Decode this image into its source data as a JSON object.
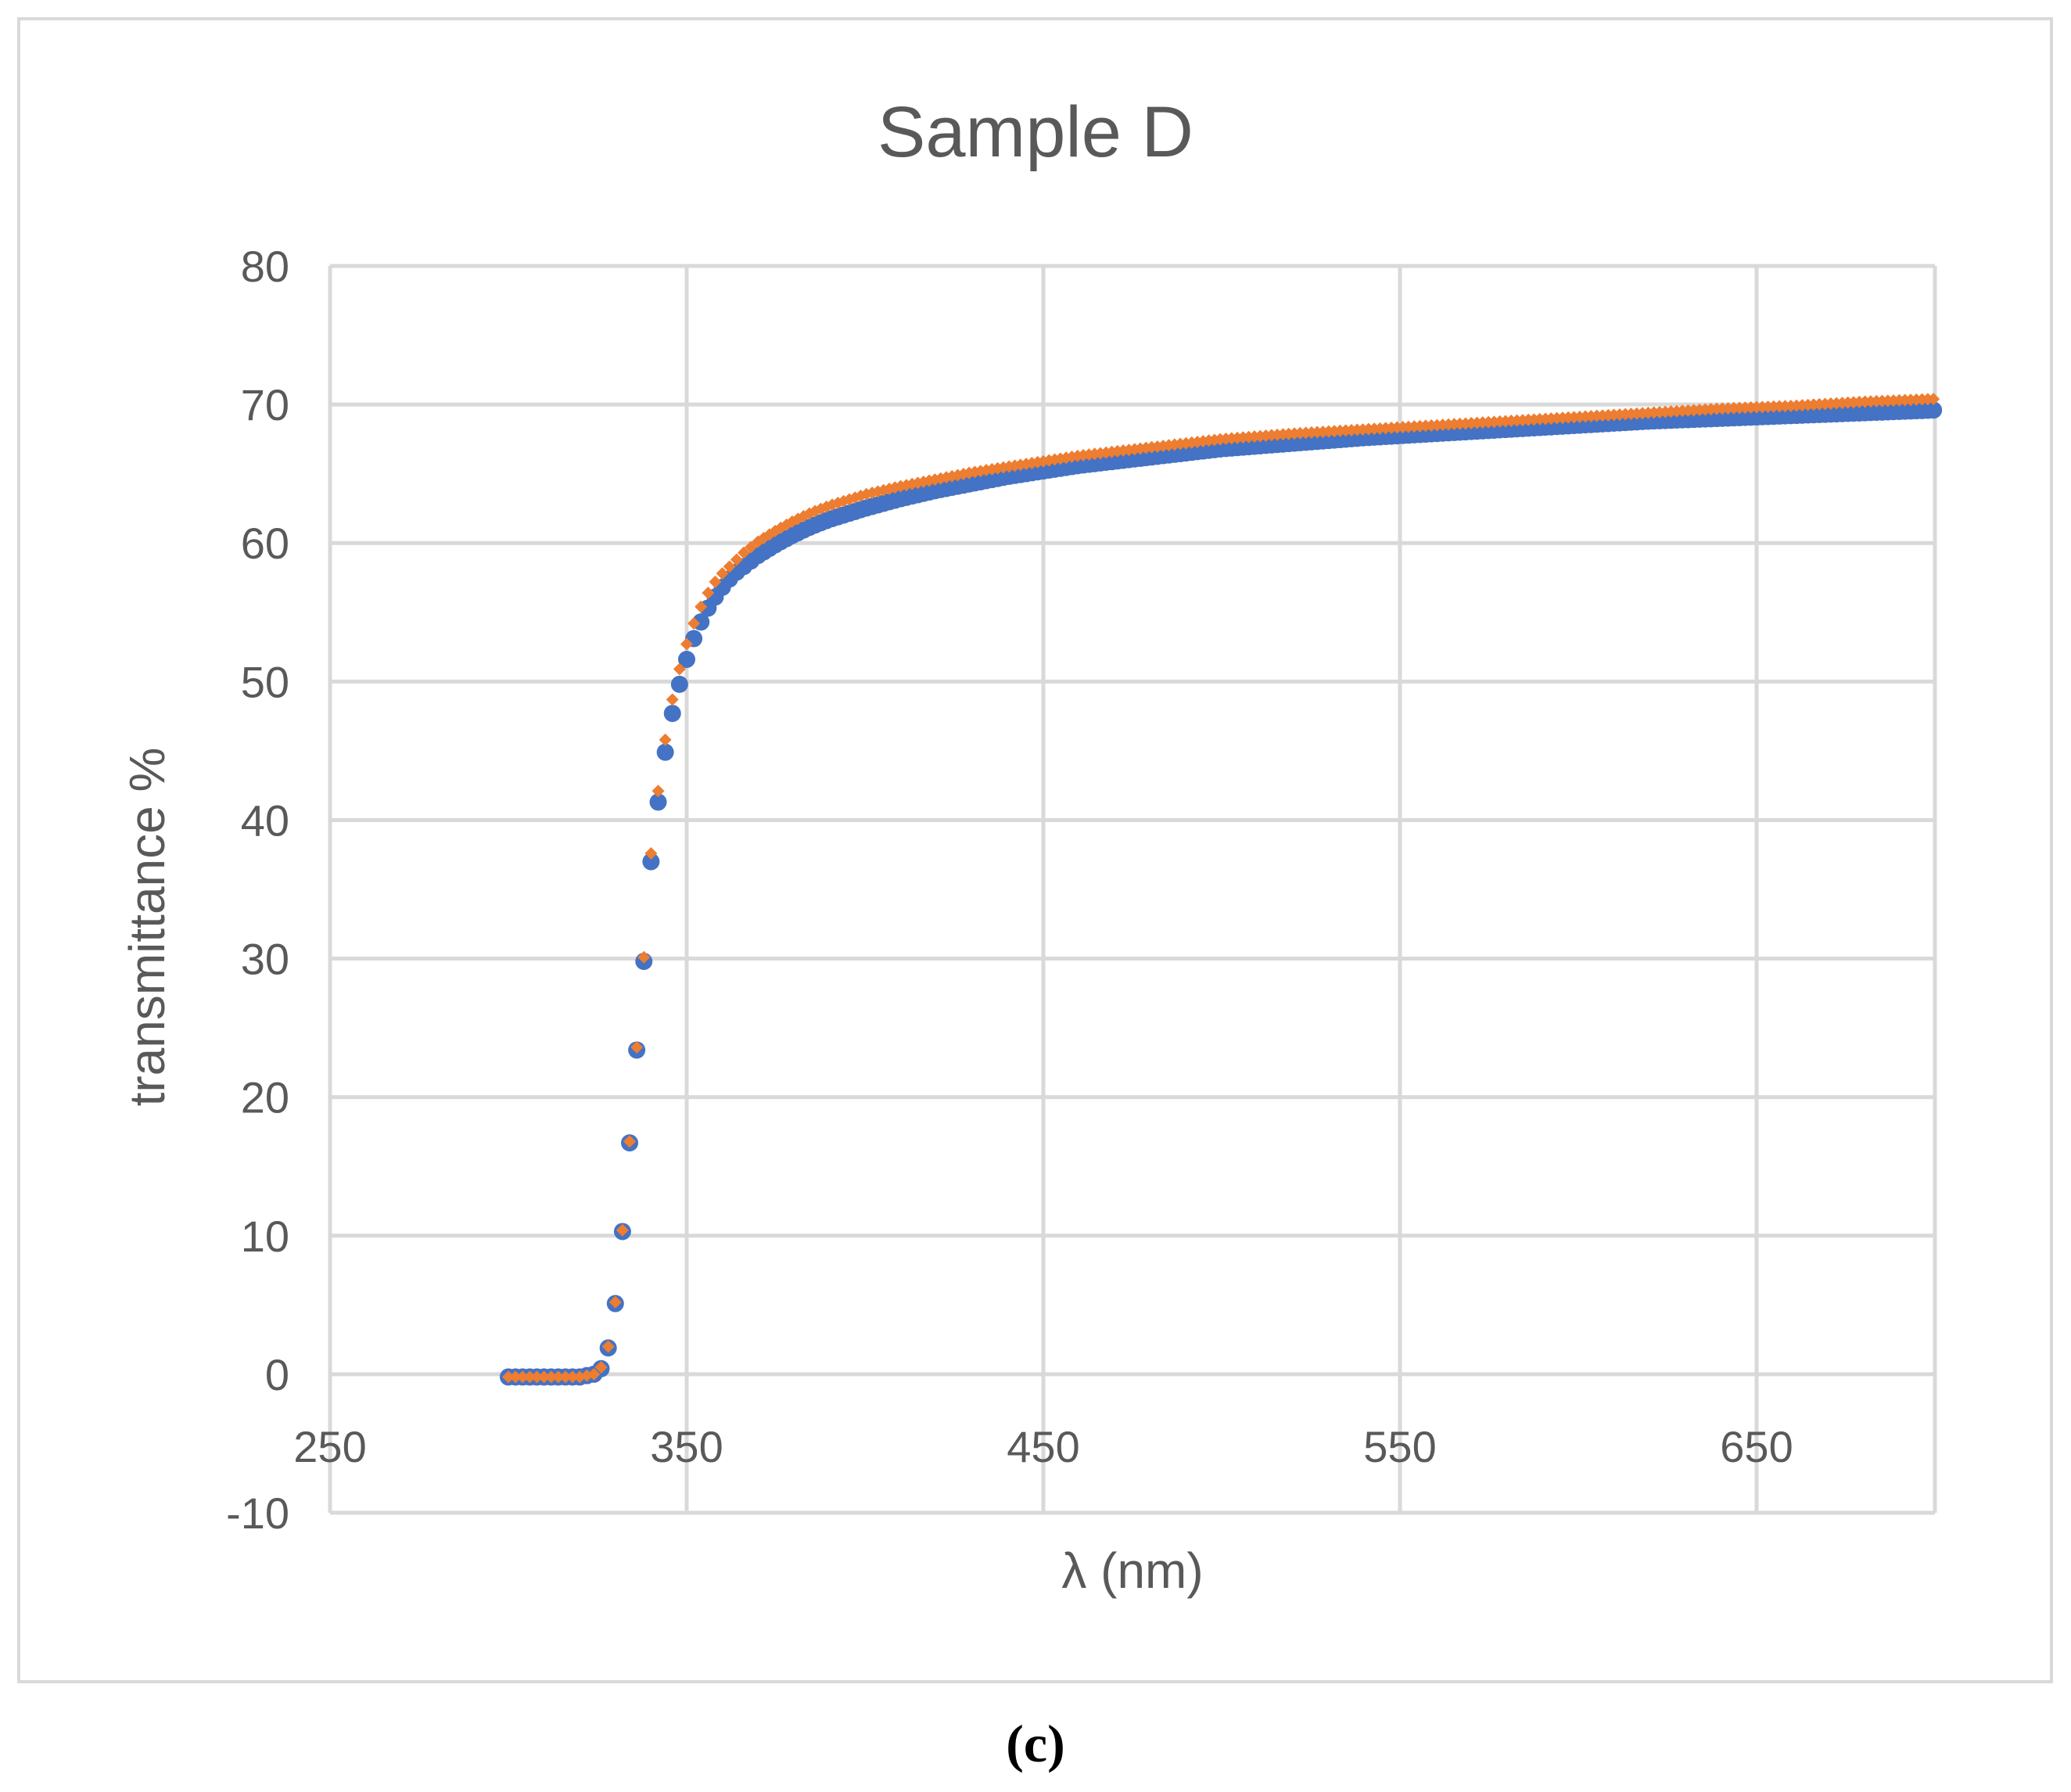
{
  "chart_data": {
    "type": "scatter",
    "title": "Sample D",
    "xlabel": "λ (nm)",
    "ylabel": "transmittance %",
    "xlim": [
      250,
      700
    ],
    "ylim": [
      -10,
      80
    ],
    "x_ticks": [
      250,
      350,
      450,
      550,
      650
    ],
    "y_ticks": [
      -10,
      0,
      10,
      20,
      30,
      40,
      50,
      60,
      70,
      80
    ],
    "grid": true,
    "legend": "none",
    "series": [
      {
        "name": "series-1",
        "color": "#4472c4",
        "marker": "circle",
        "x": [
          300,
          302,
          304,
          306,
          308,
          310,
          312,
          314,
          316,
          318,
          320,
          322,
          324,
          326,
          328,
          330,
          332,
          334,
          336,
          338,
          340,
          342,
          344,
          346,
          348,
          350,
          352,
          354,
          356,
          358,
          360,
          362,
          364,
          366,
          368,
          370,
          375,
          380,
          385,
          390,
          395,
          400,
          410,
          420,
          430,
          440,
          450,
          460,
          470,
          480,
          490,
          500,
          520,
          540,
          560,
          580,
          600,
          620,
          640,
          660,
          680,
          700
        ],
        "y": [
          -0.2,
          -0.2,
          -0.2,
          -0.2,
          -0.2,
          -0.2,
          -0.2,
          -0.2,
          -0.2,
          -0.2,
          -0.2,
          -0.1,
          0.0,
          0.4,
          1.9,
          5.1,
          10.3,
          16.7,
          23.4,
          29.8,
          37.0,
          41.3,
          44.9,
          47.7,
          49.8,
          51.6,
          53.1,
          54.3,
          55.3,
          56.1,
          56.8,
          57.4,
          57.9,
          58.3,
          58.7,
          59.1,
          59.9,
          60.6,
          61.2,
          61.7,
          62.1,
          62.5,
          63.2,
          63.8,
          64.3,
          64.8,
          65.2,
          65.6,
          65.9,
          66.2,
          66.5,
          66.8,
          67.2,
          67.6,
          67.9,
          68.2,
          68.5,
          68.8,
          69.0,
          69.2,
          69.4,
          69.6
        ]
      },
      {
        "name": "series-2",
        "color": "#ed7d31",
        "marker": "diamond",
        "x": [
          300,
          302,
          304,
          306,
          308,
          310,
          312,
          314,
          316,
          318,
          320,
          322,
          324,
          326,
          328,
          330,
          332,
          334,
          336,
          338,
          340,
          342,
          344,
          346,
          348,
          350,
          352,
          354,
          356,
          358,
          360,
          362,
          364,
          366,
          368,
          370,
          375,
          380,
          385,
          390,
          395,
          400,
          410,
          420,
          430,
          440,
          450,
          460,
          470,
          480,
          490,
          500,
          520,
          540,
          560,
          580,
          600,
          620,
          640,
          660,
          680,
          700
        ],
        "y": [
          -0.2,
          -0.2,
          -0.2,
          -0.2,
          -0.2,
          -0.2,
          -0.2,
          -0.2,
          -0.2,
          -0.2,
          -0.2,
          -0.1,
          0.0,
          0.5,
          2.0,
          5.2,
          10.4,
          16.8,
          23.6,
          30.1,
          37.6,
          42.1,
          45.8,
          48.7,
          50.9,
          52.7,
          54.2,
          55.4,
          56.4,
          57.2,
          57.8,
          58.3,
          58.8,
          59.3,
          59.7,
          60.1,
          60.9,
          61.6,
          62.2,
          62.7,
          63.1,
          63.5,
          64.1,
          64.6,
          65.1,
          65.5,
          65.9,
          66.3,
          66.6,
          66.9,
          67.2,
          67.5,
          67.9,
          68.2,
          68.5,
          68.8,
          69.1,
          69.4,
          69.7,
          69.9,
          70.2,
          70.4
        ]
      }
    ]
  },
  "caption": "(c)"
}
